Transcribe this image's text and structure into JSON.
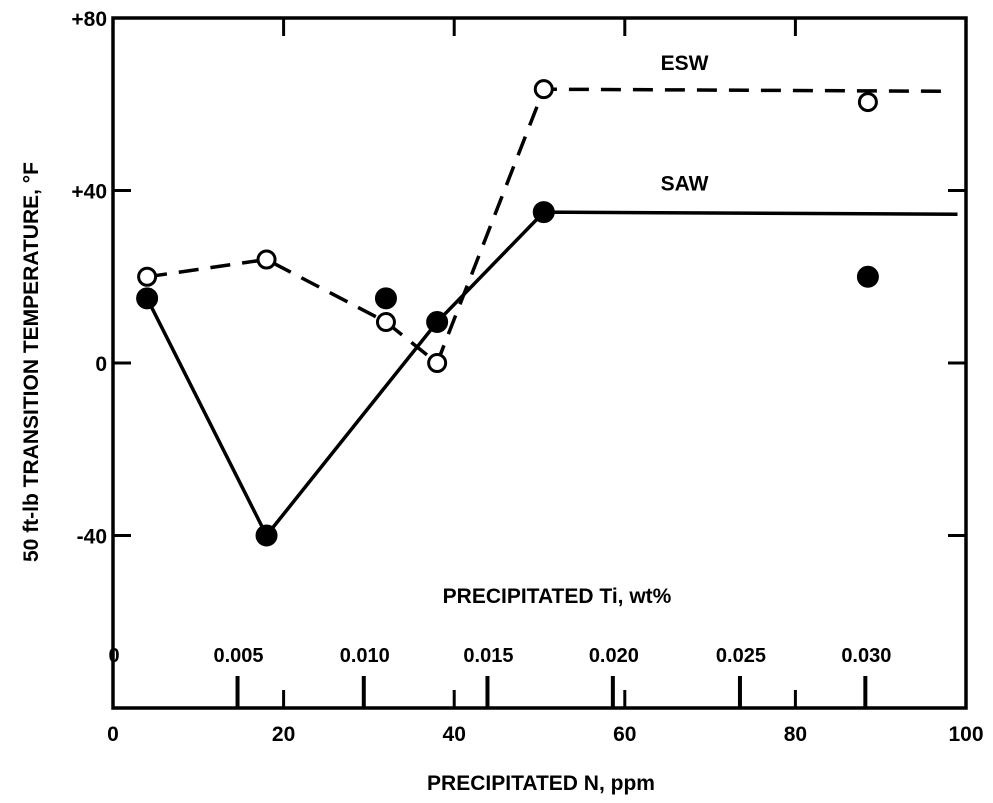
{
  "chart_data": {
    "type": "line",
    "xlabel": "PRECIPITATED N, ppm",
    "ylabel": "50 ft-lb TRANSITION TEMPERATURE, °F",
    "secondary_x_label": "PRECIPITATED Ti, wt%",
    "xlim": [
      0,
      100
    ],
    "ylim": [
      -80,
      80
    ],
    "x_ticks": [
      {
        "value": 0,
        "label": "0"
      },
      {
        "value": 20,
        "label": "20"
      },
      {
        "value": 40,
        "label": "40"
      },
      {
        "value": 60,
        "label": "60"
      },
      {
        "value": 80,
        "label": "80"
      },
      {
        "value": 100,
        "label": "100"
      }
    ],
    "y_ticks": [
      {
        "value": -40,
        "label": "-40"
      },
      {
        "value": 0,
        "label": "0"
      },
      {
        "value": 40,
        "label": "+40"
      },
      {
        "value": 80,
        "label": "+80"
      }
    ],
    "ti_ticks": [
      {
        "label": "0",
        "n_equiv": 0
      },
      {
        "label": "0.005",
        "n_equiv": 14.6
      },
      {
        "label": "0.010",
        "n_equiv": 29.4
      },
      {
        "label": "0.015",
        "n_equiv": 43.9
      },
      {
        "label": "0.020",
        "n_equiv": 58.6
      },
      {
        "label": "0.025",
        "n_equiv": 73.5
      },
      {
        "label": "0.030",
        "n_equiv": 88.2
      }
    ],
    "grid": false,
    "series": [
      {
        "name": "ESW",
        "marker": "open-circle",
        "line_style": "dashed",
        "points": [
          {
            "x": 4,
            "y": 20
          },
          {
            "x": 18,
            "y": 24
          },
          {
            "x": 32,
            "y": 9.5
          },
          {
            "x": 38,
            "y": 0
          },
          {
            "x": 50.5,
            "y": 63.5
          },
          {
            "x": 88.5,
            "y": 60.5
          }
        ],
        "fit_line": [
          {
            "x": 4,
            "y": 20
          },
          {
            "x": 18,
            "y": 24
          },
          {
            "x": 32,
            "y": 9.5
          },
          {
            "x": 38,
            "y": 0
          },
          {
            "x": 50.5,
            "y": 63.5
          },
          {
            "x": 98,
            "y": 63
          }
        ]
      },
      {
        "name": "SAW",
        "marker": "filled-circle",
        "line_style": "solid",
        "points": [
          {
            "x": 4,
            "y": 15
          },
          {
            "x": 18,
            "y": -40
          },
          {
            "x": 32,
            "y": 15
          },
          {
            "x": 38,
            "y": 9.5
          },
          {
            "x": 50.5,
            "y": 35
          },
          {
            "x": 88.5,
            "y": 20
          }
        ],
        "fit_line": [
          {
            "x": 4,
            "y": 15
          },
          {
            "x": 18,
            "y": -40
          },
          {
            "x": 38,
            "y": 9.5
          },
          {
            "x": 50.5,
            "y": 35
          },
          {
            "x": 99,
            "y": 34.5
          }
        ]
      }
    ],
    "annotations": [
      {
        "text": "ESW",
        "x": 67,
        "y": 68
      },
      {
        "text": "SAW",
        "x": 67,
        "y": 40
      }
    ]
  }
}
